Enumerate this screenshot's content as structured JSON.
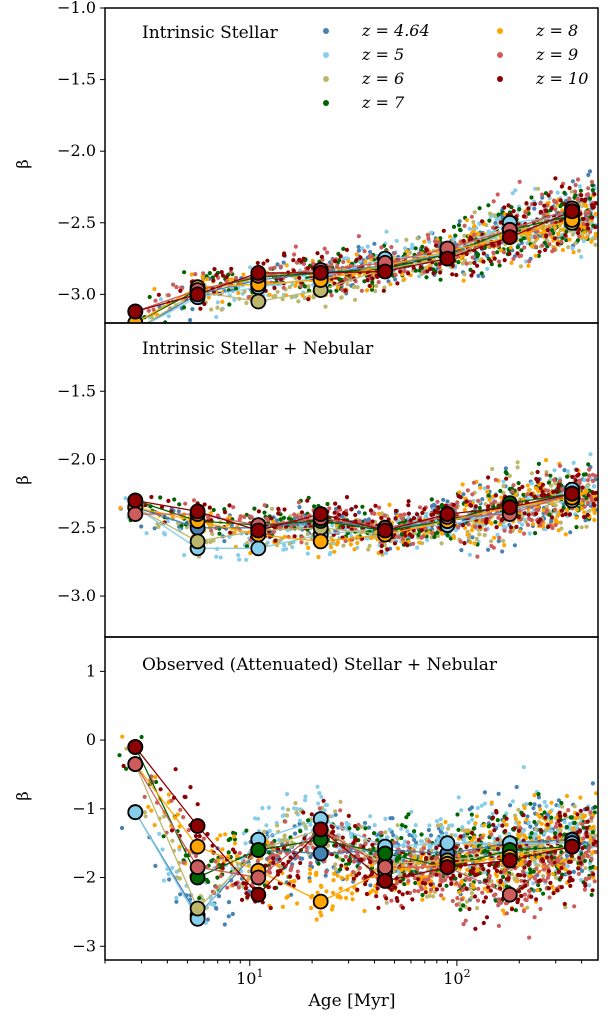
{
  "figure": {
    "xlabel": "Age [Myr]",
    "ylabel": "β",
    "xscale": "log",
    "xlim": [
      2.0,
      480
    ],
    "x_ticks": [
      {
        "value": 10,
        "label": "10¹"
      },
      {
        "value": 100,
        "label": "10²"
      }
    ],
    "legend": {
      "placement": "top-right of top panel, two columns",
      "entries": [
        {
          "label": "z = 4.64",
          "color": "#4682b4"
        },
        {
          "label": "z = 5",
          "color": "#87ceeb"
        },
        {
          "label": "z = 6",
          "color": "#bdb76b"
        },
        {
          "label": "z = 7",
          "color": "#006400"
        },
        {
          "label": "z = 8",
          "color": "#ffa500"
        },
        {
          "label": "z = 9",
          "color": "#cd5c5c"
        },
        {
          "label": "z = 10",
          "color": "#8b0000"
        }
      ]
    }
  },
  "chart_data": [
    {
      "type": "scatter",
      "title": "Intrinsic Stellar",
      "ylim": [
        -3.2,
        -1.0
      ],
      "yinverted": true,
      "y_ticks": [
        {
          "value": -1.0,
          "label": "−1.0"
        },
        {
          "value": -1.5,
          "label": "−1.5"
        },
        {
          "value": -2.0,
          "label": "−2.0"
        },
        {
          "value": -2.5,
          "label": "−2.5"
        },
        {
          "value": -3.0,
          "label": "−3.0"
        }
      ],
      "x_ages": [
        2.8,
        5.6,
        11,
        22,
        45,
        90,
        180,
        360
      ],
      "median_series": [
        {
          "name": "z = 4.64",
          "values": [
            -3.25,
            -3.0,
            -2.9,
            -2.85,
            -2.8,
            -2.72,
            -2.55,
            -2.4
          ]
        },
        {
          "name": "z = 5",
          "values": [
            -3.25,
            -3.02,
            -2.95,
            -2.88,
            -2.75,
            -2.72,
            -2.5,
            -2.45
          ]
        },
        {
          "name": "z = 6",
          "values": [
            -3.25,
            -2.98,
            -3.05,
            -2.97,
            -2.82,
            -2.75,
            -2.55,
            -2.5
          ]
        },
        {
          "name": "z = 7",
          "values": [
            -3.2,
            -2.97,
            -2.88,
            -2.85,
            -2.82,
            -2.72,
            -2.55,
            -2.45
          ]
        },
        {
          "name": "z = 8",
          "values": [
            -3.2,
            -2.95,
            -2.93,
            -2.9,
            -2.8,
            -2.7,
            -2.6,
            -2.48
          ]
        },
        {
          "name": "z = 9",
          "values": [
            -3.12,
            -2.97,
            -2.87,
            -2.83,
            -2.78,
            -2.68,
            -2.55,
            -2.4
          ]
        },
        {
          "name": "z = 10",
          "values": [
            -3.12,
            -3.0,
            -2.85,
            -2.85,
            -2.84,
            -2.75,
            -2.6,
            -2.42
          ]
        }
      ]
    },
    {
      "type": "scatter",
      "title": "Intrinsic Stellar + Nebular",
      "ylim": [
        -3.3,
        -1.0
      ],
      "yinverted": true,
      "y_ticks": [
        {
          "value": -1.5,
          "label": "−1.5"
        },
        {
          "value": -2.0,
          "label": "−2.0"
        },
        {
          "value": -2.5,
          "label": "−2.5"
        },
        {
          "value": -3.0,
          "label": "−3.0"
        }
      ],
      "x_ages": [
        2.8,
        5.6,
        11,
        22,
        45,
        90,
        180,
        360
      ],
      "median_series": [
        {
          "name": "z = 4.64",
          "values": [
            -2.35,
            -2.5,
            -2.5,
            -2.45,
            -2.5,
            -2.45,
            -2.38,
            -2.25
          ]
        },
        {
          "name": "z = 5",
          "values": [
            -2.35,
            -2.65,
            -2.65,
            -2.55,
            -2.5,
            -2.48,
            -2.38,
            -2.22
          ]
        },
        {
          "name": "z = 6",
          "values": [
            -2.35,
            -2.6,
            -2.52,
            -2.5,
            -2.55,
            -2.45,
            -2.35,
            -2.3
          ]
        },
        {
          "name": "z = 7",
          "values": [
            -2.3,
            -2.45,
            -2.48,
            -2.45,
            -2.52,
            -2.45,
            -2.32,
            -2.25
          ]
        },
        {
          "name": "z = 8",
          "values": [
            -2.35,
            -2.45,
            -2.55,
            -2.6,
            -2.55,
            -2.45,
            -2.35,
            -2.28
          ]
        },
        {
          "name": "z = 9",
          "values": [
            -2.4,
            -2.4,
            -2.48,
            -2.43,
            -2.5,
            -2.42,
            -2.4,
            -2.25
          ]
        },
        {
          "name": "z = 10",
          "values": [
            -2.3,
            -2.38,
            -2.52,
            -2.4,
            -2.52,
            -2.4,
            -2.35,
            -2.25
          ]
        }
      ]
    },
    {
      "type": "scatter",
      "title": "Observed (Attenuated) Stellar + Nebular",
      "ylim": [
        -3.2,
        1.5
      ],
      "yinverted": false,
      "y_ticks": [
        {
          "value": 1,
          "label": "1"
        },
        {
          "value": 0,
          "label": "0"
        },
        {
          "value": -1,
          "label": "−1"
        },
        {
          "value": -2,
          "label": "−2"
        },
        {
          "value": -3,
          "label": "−3"
        }
      ],
      "x_ages": [
        2.8,
        5.6,
        11,
        22,
        45,
        90,
        180,
        360
      ],
      "median_series": [
        {
          "name": "z = 4.64",
          "values": [
            -1.05,
            -2.55,
            -1.6,
            -1.65,
            -1.6,
            -1.65,
            -1.5,
            -1.45
          ]
        },
        {
          "name": "z = 5",
          "values": [
            -1.05,
            -2.6,
            -1.45,
            -1.15,
            -1.55,
            -1.5,
            -1.5,
            -1.5
          ]
        },
        {
          "name": "z = 6",
          "values": [
            -0.35,
            -2.45,
            -1.6,
            -1.3,
            -1.8,
            -1.75,
            -1.65,
            -1.55
          ]
        },
        {
          "name": "z = 7",
          "values": [
            -0.1,
            -2.0,
            -1.6,
            -1.45,
            -1.65,
            -1.85,
            -1.6,
            -1.55
          ]
        },
        {
          "name": "z = 8",
          "values": [
            -0.35,
            -1.55,
            -1.9,
            -2.35,
            -1.9,
            -1.8,
            -1.7,
            -1.55
          ]
        },
        {
          "name": "z = 9",
          "values": [
            -0.35,
            -1.85,
            -2.0,
            -1.3,
            -1.85,
            -1.85,
            -2.25,
            -1.55
          ]
        },
        {
          "name": "z = 10",
          "values": [
            -0.1,
            -1.25,
            -2.25,
            -1.3,
            -2.05,
            -1.85,
            -1.75,
            -1.55
          ]
        }
      ]
    }
  ]
}
